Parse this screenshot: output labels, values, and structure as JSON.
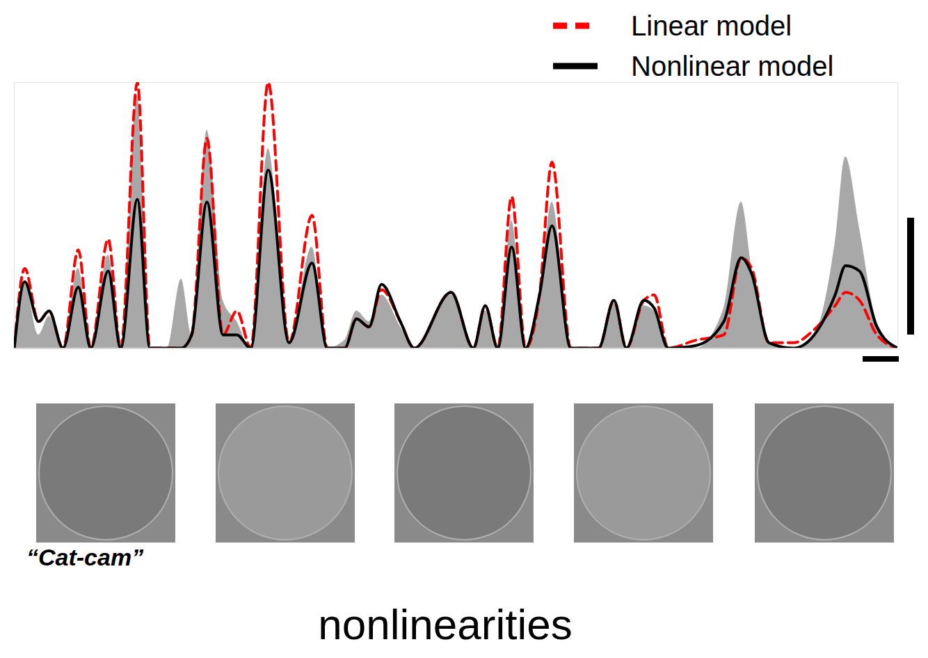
{
  "chart_data": {
    "type": "line",
    "title": "nonlinearities",
    "annotations": [
      "“Cat-cam”"
    ],
    "tick_labels": false,
    "legend": "top-right",
    "xlim": [
      0,
      127
    ],
    "ylim": [
      0,
      100
    ],
    "x": [
      0,
      1.5,
      3.5,
      5,
      7,
      9.2,
      11,
      13.5,
      15.3,
      17.7,
      19.5,
      22,
      24,
      25.5,
      27.7,
      30,
      32,
      34,
      36.5,
      39.5,
      42.8,
      45,
      47.5,
      49.2,
      51,
      52.8,
      55.5,
      57.5,
      62.8,
      66,
      67.7,
      69.5,
      71.5,
      73.5,
      75.5,
      77.3,
      80,
      84,
      86.2,
      88,
      90.5,
      92,
      94,
      98,
      102,
      104.5,
      106,
      108.5,
      112,
      115,
      118,
      119.5,
      121.5,
      124,
      127
    ],
    "series": [
      {
        "name": null,
        "type": "area",
        "color": "#a8a8a8",
        "values": [
          0,
          25,
          5,
          12,
          0,
          30,
          0,
          35,
          0,
          95,
          0,
          0,
          26,
          5,
          82,
          18,
          10,
          0,
          75,
          2,
          38,
          0,
          3,
          14,
          10,
          20,
          8,
          0,
          20,
          0,
          14,
          0,
          48,
          0,
          18,
          55,
          0,
          0,
          17,
          0,
          16,
          14,
          0,
          0,
          15,
          55,
          30,
          2,
          0,
          5,
          40,
          72,
          45,
          10,
          0
        ]
      },
      {
        "name": "Linear model",
        "type": "line",
        "color": "#ff0000",
        "line_style": "dashed",
        "values": [
          0,
          30,
          10,
          14,
          0,
          37,
          0,
          41,
          0,
          100,
          0,
          0,
          0,
          5,
          79,
          5,
          14,
          0,
          100,
          2,
          50,
          0,
          0,
          11,
          8,
          22,
          10,
          0,
          21,
          0,
          16,
          0,
          57,
          0,
          20,
          70,
          0,
          0,
          18,
          0,
          18,
          20,
          0,
          3,
          5,
          34,
          30,
          2,
          2,
          7,
          16,
          21,
          18,
          5,
          0
        ]
      },
      {
        "name": "Nonlinear model",
        "type": "line",
        "color": "#000000",
        "line_style": "solid",
        "values": [
          0,
          25,
          10,
          14,
          0,
          23,
          0,
          29,
          0,
          56,
          0,
          0,
          0,
          5,
          55,
          5,
          5,
          0,
          67,
          2,
          32,
          0,
          0,
          11,
          8,
          24,
          10,
          0,
          21,
          0,
          16,
          0,
          38,
          0,
          20,
          46,
          0,
          0,
          18,
          0,
          18,
          15,
          0,
          1,
          10,
          34,
          28,
          2,
          0,
          5,
          20,
          31,
          29,
          8,
          0
        ]
      }
    ]
  }
}
